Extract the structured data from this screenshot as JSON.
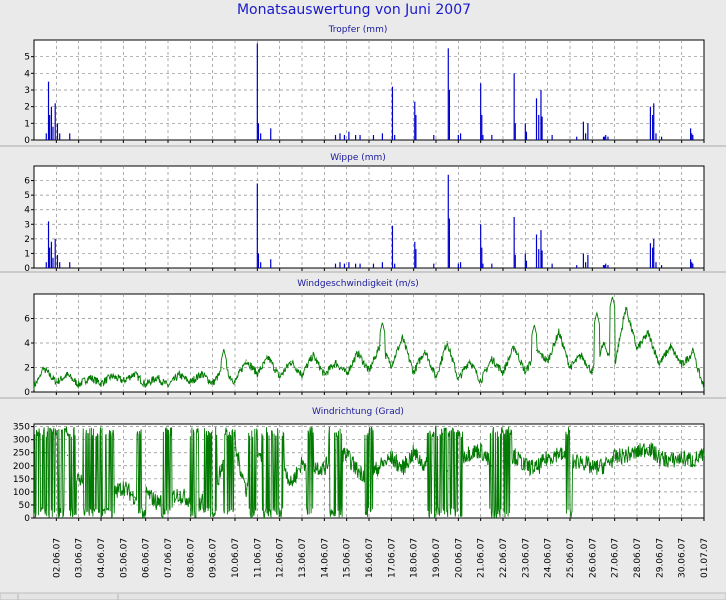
{
  "page": {
    "title": "Monatsauswertung von Juni 2007"
  },
  "colors": {
    "rain": "#0000cc",
    "wind": "#007a00",
    "title": "#1a1acc"
  },
  "x_axis": {
    "ticks": [
      "02.06.07",
      "03.06.07",
      "04.06.07",
      "05.06.07",
      "06.06.07",
      "07.06.07",
      "08.06.07",
      "09.06.07",
      "10.06.07",
      "11.06.07",
      "12.06.07",
      "13.06.07",
      "14.06.07",
      "15.06.07",
      "16.06.07",
      "17.06.07",
      "18.06.07",
      "19.06.07",
      "20.06.07",
      "21.06.07",
      "22.06.07",
      "23.06.07",
      "24.06.07",
      "25.06.07",
      "26.06.07",
      "27.06.07",
      "28.06.07",
      "29.06.07",
      "30.06.07",
      "01.07.07"
    ],
    "domain_days": [
      0,
      30
    ],
    "grid": true
  },
  "chart_data": [
    {
      "type": "bar",
      "title": "Tropfer (mm)",
      "ylim": [
        0,
        6
      ],
      "yticks": [
        "0",
        "1",
        "2",
        "3",
        "4",
        "5"
      ],
      "grid": true,
      "x_unit": "day of June 2007 (0 = 01.06.07 00:00)",
      "x": [
        0.55,
        0.65,
        0.7,
        0.78,
        0.85,
        0.95,
        1.05,
        1.15,
        1.6,
        10.0,
        10.05,
        10.15,
        10.6,
        13.5,
        13.7,
        13.9,
        14.1,
        14.4,
        14.6,
        15.2,
        15.6,
        16.05,
        16.15,
        17.05,
        17.1,
        17.9,
        18.55,
        18.6,
        19.0,
        19.1,
        20.0,
        20.05,
        20.1,
        20.5,
        21.5,
        21.55,
        22.0,
        22.05,
        22.5,
        22.6,
        22.7,
        22.75,
        23.2,
        24.3,
        24.6,
        24.7,
        24.8,
        25.5,
        25.55,
        25.6,
        25.7,
        27.6,
        27.7,
        27.75,
        27.85,
        28.1,
        29.4,
        29.45,
        29.5
      ],
      "values": [
        0.4,
        3.5,
        1.5,
        2.0,
        0.8,
        2.2,
        1.0,
        0.4,
        0.4,
        5.8,
        1.0,
        0.4,
        0.7,
        0.3,
        0.4,
        0.3,
        0.5,
        0.3,
        0.3,
        0.3,
        0.4,
        3.2,
        0.3,
        2.3,
        1.5,
        0.3,
        5.5,
        3.0,
        0.3,
        0.4,
        3.4,
        1.5,
        0.3,
        0.3,
        4.0,
        1.0,
        1.0,
        0.5,
        2.5,
        1.5,
        3.0,
        1.4,
        0.3,
        0.2,
        1.1,
        0.4,
        1.0,
        0.2,
        0.2,
        0.3,
        0.2,
        2.0,
        1.5,
        2.2,
        0.4,
        0.2,
        0.7,
        0.4,
        0.3
      ]
    },
    {
      "type": "bar",
      "title": "Wippe (mm)",
      "ylim": [
        0,
        7
      ],
      "yticks": [
        "0",
        "1",
        "2",
        "3",
        "4",
        "5",
        "6"
      ],
      "grid": true,
      "x_unit": "day of June 2007 (0 = 01.06.07 00:00)",
      "x": [
        0.55,
        0.65,
        0.7,
        0.78,
        0.85,
        0.95,
        1.05,
        1.15,
        1.6,
        10.0,
        10.05,
        10.15,
        10.6,
        13.5,
        13.7,
        13.9,
        14.1,
        14.4,
        14.6,
        15.2,
        15.6,
        16.05,
        16.15,
        17.05,
        17.1,
        17.9,
        18.55,
        18.6,
        19.0,
        19.1,
        20.0,
        20.05,
        20.1,
        20.5,
        21.5,
        21.55,
        22.0,
        22.05,
        22.5,
        22.6,
        22.7,
        22.75,
        23.2,
        24.3,
        24.6,
        24.7,
        24.8,
        25.5,
        25.55,
        25.6,
        25.7,
        27.6,
        27.7,
        27.75,
        27.85,
        28.1,
        29.4,
        29.45,
        29.5
      ],
      "values": [
        0.4,
        3.2,
        1.4,
        1.8,
        0.7,
        2.0,
        0.9,
        0.4,
        0.4,
        5.8,
        1.0,
        0.4,
        0.6,
        0.3,
        0.4,
        0.3,
        0.4,
        0.3,
        0.3,
        0.3,
        0.4,
        2.9,
        0.3,
        1.8,
        1.3,
        0.3,
        6.4,
        3.4,
        0.3,
        0.4,
        3.0,
        1.4,
        0.3,
        0.3,
        3.5,
        0.9,
        1.0,
        0.5,
        2.3,
        1.3,
        2.6,
        1.2,
        0.3,
        0.2,
        1.0,
        0.4,
        0.9,
        0.2,
        0.2,
        0.3,
        0.2,
        1.7,
        1.4,
        2.0,
        0.4,
        0.2,
        0.6,
        0.4,
        0.3
      ]
    },
    {
      "type": "line",
      "title": "Windgeschwindigkeit (m/s)",
      "ylim": [
        0,
        8
      ],
      "yticks": [
        "0",
        "2",
        "4",
        "6"
      ],
      "grid": true,
      "x_unit": "day of June 2007 (0 = 01.06.07 00:00)",
      "x": [
        0.0,
        0.5,
        1.0,
        1.5,
        2.0,
        2.5,
        3.0,
        3.5,
        4.0,
        4.5,
        5.0,
        5.5,
        6.0,
        6.5,
        7.0,
        7.5,
        8.0,
        8.5,
        9.0,
        9.5,
        10.0,
        10.5,
        11.0,
        11.5,
        12.0,
        12.5,
        13.0,
        13.5,
        14.0,
        14.5,
        15.0,
        15.5,
        16.0,
        16.5,
        17.0,
        17.5,
        18.0,
        18.5,
        19.0,
        19.5,
        20.0,
        20.5,
        21.0,
        21.5,
        22.0,
        22.5,
        23.0,
        23.5,
        24.0,
        24.5,
        25.0,
        25.5,
        26.0,
        26.5,
        27.0,
        27.5,
        28.0,
        28.5,
        29.0,
        29.5,
        30.0
      ],
      "values": [
        0.5,
        1.8,
        0.8,
        1.4,
        0.6,
        1.2,
        0.7,
        1.3,
        0.9,
        1.5,
        0.6,
        1.2,
        0.5,
        1.4,
        0.8,
        1.5,
        0.7,
        1.9,
        0.8,
        2.6,
        1.5,
        2.8,
        1.2,
        2.5,
        1.4,
        3.0,
        1.4,
        2.4,
        1.5,
        3.2,
        1.7,
        3.8,
        2.2,
        4.4,
        1.6,
        3.4,
        1.2,
        4.1,
        1.0,
        2.6,
        0.9,
        2.7,
        1.6,
        3.7,
        1.6,
        3.4,
        2.5,
        4.9,
        2.0,
        3.0,
        1.6,
        3.9,
        2.2,
        6.9,
        3.5,
        4.8,
        2.3,
        3.7,
        2.2,
        3.2,
        0.3
      ],
      "peaks": [
        [
          0.4,
          2.1
        ],
        [
          8.5,
          3.5
        ],
        [
          15.6,
          5.7
        ],
        [
          22.4,
          5.5
        ],
        [
          25.2,
          6.5
        ],
        [
          25.9,
          7.8
        ],
        [
          27.5,
          4.7
        ],
        [
          29.5,
          3.6
        ]
      ]
    },
    {
      "type": "line",
      "title": "Windrichtung (Grad)",
      "ylim": [
        0,
        360
      ],
      "yticks": [
        "0",
        "50",
        "100",
        "150",
        "200",
        "250",
        "300",
        "350"
      ],
      "grid": true,
      "x_unit": "day of June 2007 (0 = 01.06.07 00:00)",
      "x": [
        0.0,
        0.5,
        1.0,
        1.5,
        2.0,
        2.5,
        3.0,
        3.5,
        4.0,
        4.5,
        5.0,
        5.5,
        6.0,
        6.5,
        7.0,
        7.5,
        8.0,
        8.5,
        9.0,
        9.5,
        10.0,
        10.5,
        11.0,
        11.5,
        12.0,
        12.5,
        13.0,
        13.5,
        14.0,
        14.5,
        15.0,
        15.5,
        16.0,
        16.5,
        17.0,
        17.5,
        18.0,
        18.5,
        19.0,
        19.5,
        20.0,
        20.5,
        21.0,
        21.5,
        22.0,
        22.5,
        23.0,
        23.5,
        24.0,
        24.5,
        25.0,
        25.5,
        26.0,
        26.5,
        27.0,
        27.5,
        28.0,
        28.5,
        29.0,
        29.5,
        30.0
      ],
      "values": [
        260,
        250,
        280,
        240,
        150,
        120,
        200,
        90,
        120,
        80,
        100,
        60,
        80,
        90,
        70,
        60,
        80,
        220,
        270,
        110,
        240,
        170,
        250,
        130,
        210,
        200,
        190,
        260,
        240,
        180,
        160,
        200,
        230,
        190,
        250,
        200,
        210,
        180,
        230,
        250,
        260,
        200,
        220,
        240,
        200,
        190,
        230,
        250,
        210,
        220,
        190,
        200,
        230,
        240,
        250,
        270,
        230,
        220,
        230,
        220,
        240
      ],
      "wrap_bands": [
        [
          0.0,
          1.9
        ],
        [
          2.2,
          3.6
        ],
        [
          4.6,
          5.0
        ],
        [
          5.7,
          6.2
        ],
        [
          7.0,
          7.4
        ],
        [
          7.6,
          8.2
        ],
        [
          8.5,
          9.0
        ],
        [
          9.6,
          10.0
        ],
        [
          10.2,
          11.2
        ],
        [
          12.2,
          12.5
        ],
        [
          13.2,
          13.8
        ],
        [
          14.8,
          15.2
        ],
        [
          17.6,
          19.2
        ],
        [
          20.4,
          21.4
        ],
        [
          23.8,
          24.1
        ]
      ]
    }
  ]
}
